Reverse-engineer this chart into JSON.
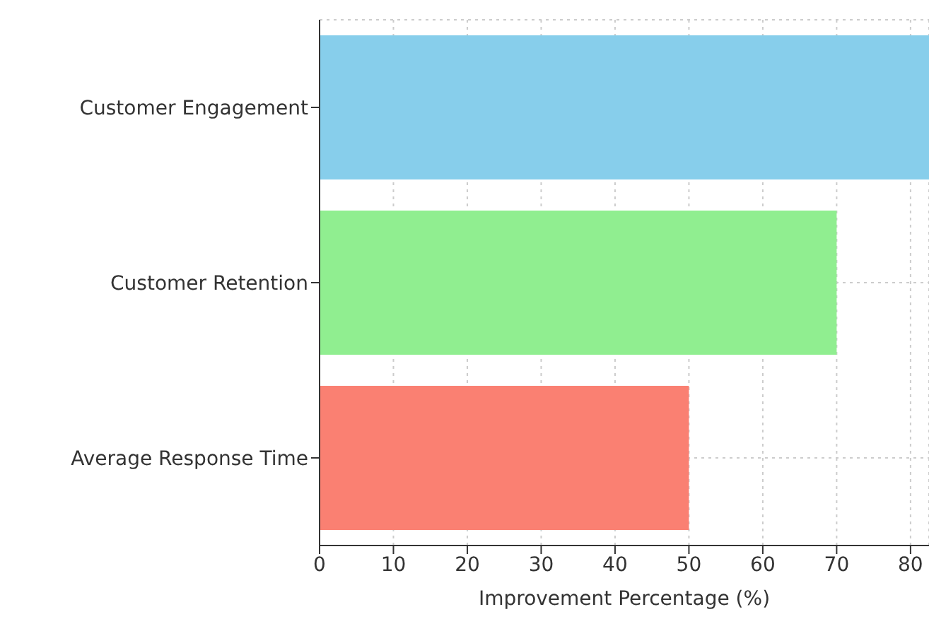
{
  "chart_data": {
    "type": "bar",
    "orientation": "horizontal",
    "xlabel": "Improvement Percentage (%)",
    "categories": [
      "Customer Engagement",
      "Customer Retention",
      "Average Response Time"
    ],
    "values": [
      82.5,
      70,
      50
    ],
    "colors": [
      "#87ceeb",
      "#90ee90",
      "#fa8072"
    ],
    "xlim": [
      0,
      82.5
    ],
    "xticks": [
      0,
      10,
      20,
      30,
      40,
      50,
      60,
      70,
      80
    ],
    "grid": true
  }
}
